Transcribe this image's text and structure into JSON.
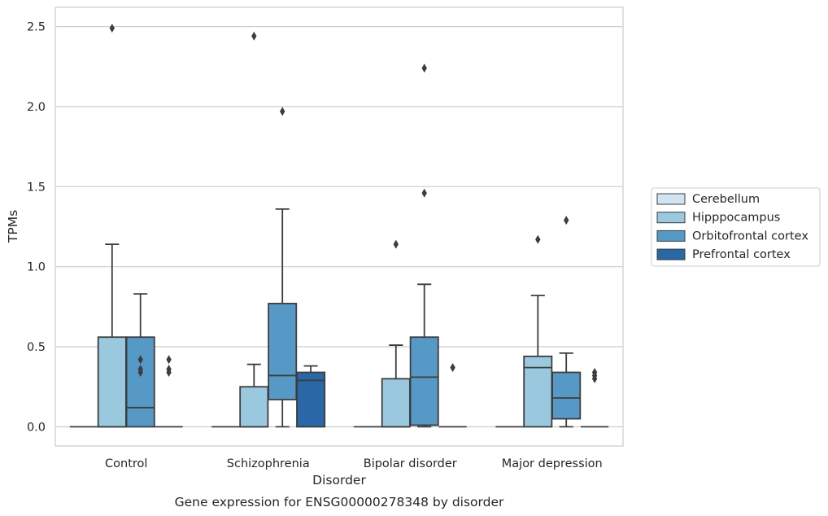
{
  "chart_data": {
    "type": "box",
    "xlabel": "Disorder",
    "ylabel": "TPMs",
    "caption": "Gene expression for ENSG00000278348 by disorder",
    "ylim": [
      -0.12,
      2.62
    ],
    "yticks": [
      "0.0",
      "0.5",
      "1.0",
      "1.5",
      "2.0",
      "2.5"
    ],
    "grid": true,
    "legend_position": "right-center",
    "categories": [
      "Control",
      "Schizophrenia",
      "Bipolar disorder",
      "Major depression"
    ],
    "series": [
      {
        "name": "Cerebellum",
        "color": "#d2e3f1",
        "boxes": [
          {
            "q1": 0,
            "median": 0,
            "q3": 0,
            "whislo": 0,
            "whishi": 0,
            "fliers": []
          },
          {
            "q1": 0,
            "median": 0,
            "q3": 0,
            "whislo": 0,
            "whishi": 0,
            "fliers": []
          },
          {
            "q1": 0,
            "median": 0,
            "q3": 0,
            "whislo": 0,
            "whishi": 0,
            "fliers": []
          },
          {
            "q1": 0,
            "median": 0,
            "q3": 0,
            "whislo": 0,
            "whishi": 0,
            "fliers": []
          }
        ]
      },
      {
        "name": "Hipppocampus",
        "color": "#9ac8df",
        "boxes": [
          {
            "q1": 0,
            "median": 0,
            "q3": 0.56,
            "whislo": 0,
            "whishi": 1.14,
            "fliers": [
              2.49
            ]
          },
          {
            "q1": 0,
            "median": 0,
            "q3": 0.25,
            "whislo": 0,
            "whishi": 0.39,
            "fliers": [
              2.44
            ]
          },
          {
            "q1": 0,
            "median": 0,
            "q3": 0.3,
            "whislo": 0,
            "whishi": 0.51,
            "fliers": [
              1.14
            ]
          },
          {
            "q1": 0,
            "median": 0.37,
            "q3": 0.44,
            "whislo": 0,
            "whishi": 0.82,
            "fliers": [
              1.17
            ]
          }
        ]
      },
      {
        "name": "Orbitofrontal cortex",
        "color": "#5699c6",
        "boxes": [
          {
            "q1": 0,
            "median": 0.12,
            "q3": 0.56,
            "whislo": 0,
            "whishi": 0.83,
            "fliers": [
              0.42,
              0.36,
              0.34
            ]
          },
          {
            "q1": 0.17,
            "median": 0.32,
            "q3": 0.77,
            "whislo": 0,
            "whishi": 1.36,
            "fliers": [
              1.97
            ]
          },
          {
            "q1": 0.01,
            "median": 0.31,
            "q3": 0.56,
            "whislo": 0,
            "whishi": 0.89,
            "fliers": [
              2.24,
              1.46
            ]
          },
          {
            "q1": 0.05,
            "median": 0.18,
            "q3": 0.34,
            "whislo": 0,
            "whishi": 0.46,
            "fliers": [
              1.29
            ]
          }
        ]
      },
      {
        "name": "Prefrontal cortex",
        "color": "#2a67a6",
        "boxes": [
          {
            "q1": 0,
            "median": 0,
            "q3": 0,
            "whislo": 0,
            "whishi": 0,
            "fliers": [
              0.42,
              0.36,
              0.34
            ]
          },
          {
            "q1": 0,
            "median": 0.29,
            "q3": 0.34,
            "whislo": 0,
            "whishi": 0.38,
            "fliers": []
          },
          {
            "q1": 0,
            "median": 0,
            "q3": 0,
            "whislo": 0,
            "whishi": 0,
            "fliers": [
              0.37
            ]
          },
          {
            "q1": 0,
            "median": 0,
            "q3": 0,
            "whislo": 0,
            "whishi": 0,
            "fliers": [
              0.34,
              0.32,
              0.3
            ]
          }
        ]
      }
    ]
  }
}
